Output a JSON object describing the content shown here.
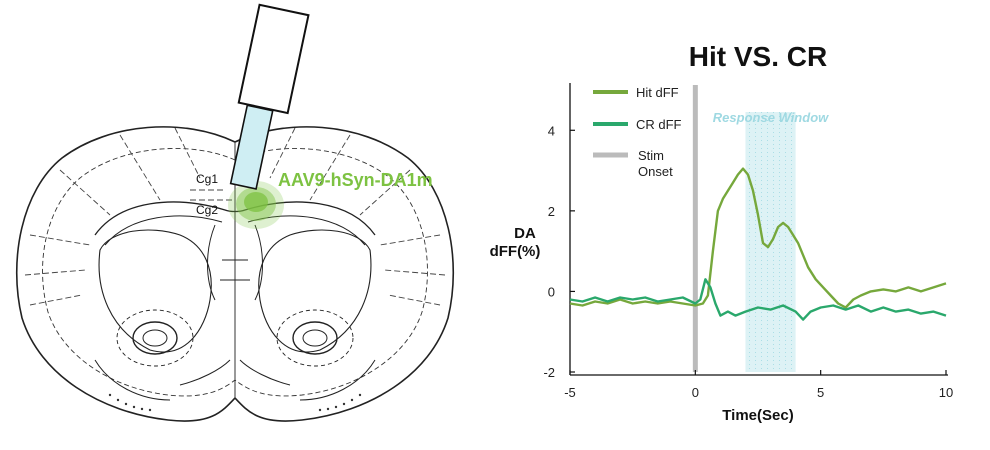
{
  "brain_panel": {
    "virus_label": "AAV9-hSyn-DA1m",
    "region_labels": [
      "Cg1",
      "Cg2"
    ],
    "virus_color": "#7dc242",
    "fiber_color": "#cfeef3"
  },
  "chart_data": {
    "type": "line",
    "title": "Hit VS. CR",
    "xlabel": "Time(Sec)",
    "ylabel_lines": [
      "DA",
      "dFF(%)"
    ],
    "xlim": [
      -5,
      10
    ],
    "ylim": [
      -2,
      5
    ],
    "xticks": [
      "-5",
      "0",
      "5",
      "10"
    ],
    "yticks": [
      "-2",
      "0",
      "2",
      "4"
    ],
    "grid": false,
    "legend_position": "top-left",
    "stim_onset_x": 0,
    "stim_label_lines": [
      "Stim",
      "Onset"
    ],
    "stim_color": "#bbbbbb",
    "response_window": {
      "label": "Response Window",
      "x": [
        2,
        4
      ],
      "color": "#9fd9e2"
    },
    "series": [
      {
        "name": "Hit dFF",
        "color": "#76a83c",
        "x": [
          -5,
          -4.5,
          -4,
          -3.5,
          -3,
          -2.5,
          -2,
          -1.5,
          -1,
          -0.5,
          0,
          0.3,
          0.5,
          0.7,
          0.9,
          1.1,
          1.3,
          1.5,
          1.7,
          1.9,
          2.1,
          2.3,
          2.5,
          2.7,
          2.9,
          3.1,
          3.3,
          3.5,
          3.7,
          3.9,
          4.1,
          4.3,
          4.5,
          4.8,
          5.1,
          5.4,
          5.7,
          6,
          6.3,
          6.6,
          7,
          7.5,
          8,
          8.5,
          9,
          9.5,
          10
        ],
        "y": [
          -0.3,
          -0.35,
          -0.25,
          -0.3,
          -0.2,
          -0.3,
          -0.25,
          -0.3,
          -0.25,
          -0.3,
          -0.35,
          -0.3,
          -0.1,
          1.0,
          2.0,
          2.3,
          2.5,
          2.7,
          2.9,
          3.05,
          2.9,
          2.5,
          1.9,
          1.2,
          1.1,
          1.3,
          1.6,
          1.7,
          1.6,
          1.4,
          1.2,
          0.9,
          0.6,
          0.3,
          0.1,
          -0.1,
          -0.3,
          -0.4,
          -0.2,
          -0.1,
          0.0,
          0.05,
          0.0,
          0.1,
          0.0,
          0.1,
          0.2
        ]
      },
      {
        "name": "CR dFF",
        "color": "#2aa86c",
        "x": [
          -5,
          -4.5,
          -4,
          -3.5,
          -3,
          -2.5,
          -2,
          -1.5,
          -1,
          -0.5,
          0,
          0.2,
          0.4,
          0.6,
          0.8,
          1,
          1.3,
          1.6,
          2,
          2.5,
          3,
          3.5,
          4,
          4.3,
          4.6,
          5,
          5.5,
          6,
          6.5,
          7,
          7.5,
          8,
          8.5,
          9,
          9.5,
          10
        ],
        "y": [
          -0.2,
          -0.25,
          -0.15,
          -0.25,
          -0.15,
          -0.2,
          -0.15,
          -0.25,
          -0.2,
          -0.15,
          -0.3,
          -0.2,
          0.3,
          0.1,
          -0.3,
          -0.6,
          -0.5,
          -0.6,
          -0.5,
          -0.4,
          -0.45,
          -0.35,
          -0.5,
          -0.7,
          -0.5,
          -0.4,
          -0.35,
          -0.45,
          -0.35,
          -0.5,
          -0.4,
          -0.5,
          -0.45,
          -0.55,
          -0.5,
          -0.6
        ]
      }
    ]
  }
}
